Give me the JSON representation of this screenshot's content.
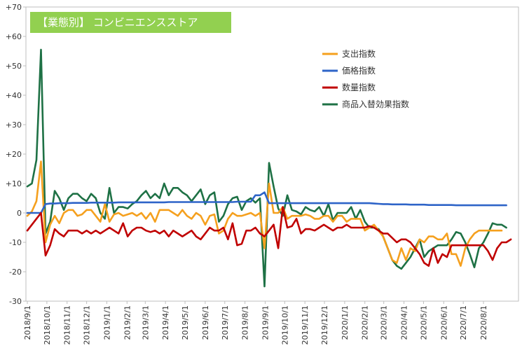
{
  "chart_data": {
    "type": "line",
    "title": "【業態別】 コンビニエンスストア",
    "ylim": [
      -30,
      70
    ],
    "ytick_labels": [
      "-30",
      "-20",
      "-10",
      "0",
      "+10",
      "+20",
      "+30",
      "+40",
      "+50",
      "+60",
      "+70"
    ],
    "xtick_labels": [
      "2018/9/1",
      "2018/10/1",
      "2018/11/1",
      "2018/12/1",
      "2019/1/1",
      "2019/2/1",
      "2019/3/1",
      "2019/4/1",
      "2019/5/1",
      "2019/6/1",
      "2019/7/1",
      "2019/8/1",
      "2019/9/1",
      "2019/10/1",
      "2019/11/1",
      "2019/12/1",
      "2020/1/1",
      "2020/2/1",
      "2020/3/1",
      "2020/4/1",
      "2020/5/1",
      "2020/6/1",
      "2020/7/1",
      "2020/8/1"
    ],
    "x_start": "2018-09-01",
    "x_end": "2020-08-31",
    "x_step": "week",
    "grid": false,
    "legend": "top-right",
    "series": [
      {
        "name": "支出指数",
        "color": "#f5a01e",
        "values": [
          -1,
          0.5,
          4,
          17.5,
          -10,
          -4,
          -1,
          -3.5,
          0,
          1,
          1,
          -1,
          -0.5,
          1,
          1,
          -1,
          -3,
          3,
          -3,
          -0.5,
          0,
          -1,
          -0.5,
          0,
          -1,
          0,
          -2,
          0,
          -3,
          1,
          1,
          1,
          0,
          -1,
          1,
          -1,
          -2,
          0,
          -1,
          -4,
          -1,
          -0.5,
          -7,
          -6,
          -2,
          0,
          -1,
          -1,
          -0.5,
          0,
          -1,
          0,
          -12,
          10,
          0,
          0,
          2,
          -2,
          -1,
          -1,
          -1,
          -0.5,
          -1,
          -2,
          -2,
          -1,
          -1,
          -3,
          -1,
          -1,
          -3,
          -2,
          -2,
          -2,
          -6,
          -5,
          -4,
          -6,
          -8,
          -12,
          -16,
          -17,
          -12,
          -16,
          -12,
          -13,
          -9,
          -10,
          -8,
          -8,
          -9,
          -9,
          -7,
          -14,
          -14,
          -18,
          -12,
          -9,
          -7,
          -6,
          -6,
          -6,
          -6,
          -6,
          -6
        ]
      },
      {
        "name": "価格指数",
        "color": "#2e64c8",
        "values": [
          0,
          0,
          0,
          0,
          3,
          3.2,
          3.2,
          3.3,
          3.3,
          3.3,
          3.4,
          3.4,
          3.4,
          3.4,
          3.5,
          3.5,
          3.5,
          3.5,
          3.5,
          3.5,
          3.6,
          3.6,
          3.6,
          3.6,
          3.6,
          3.6,
          3.6,
          3.6,
          3.6,
          3.6,
          3.6,
          3.7,
          3.7,
          3.7,
          3.7,
          3.7,
          3.7,
          3.7,
          3.7,
          3.7,
          3.7,
          3.7,
          3.7,
          3.7,
          3.7,
          3.7,
          3.8,
          3.8,
          3.8,
          3.8,
          6,
          6,
          7,
          3.3,
          3.3,
          3.3,
          3.3,
          3.3,
          3.3,
          3.3,
          3.3,
          3.3,
          3.3,
          3.3,
          3.3,
          3.3,
          3.3,
          3.3,
          3.3,
          3.3,
          3.3,
          3.3,
          3.3,
          3.3,
          3.3,
          3.3,
          3.2,
          3.1,
          3,
          3,
          2.9,
          2.9,
          2.9,
          2.9,
          2.8,
          2.8,
          2.8,
          2.8,
          2.7,
          2.7,
          2.7,
          2.7,
          2.7,
          2.7,
          2.6,
          2.6,
          2.6,
          2.6,
          2.6,
          2.6,
          2.6,
          2.6,
          2.6,
          2.6,
          2.6,
          2.6
        ]
      },
      {
        "name": "数量指数",
        "color": "#c00000",
        "values": [
          -6,
          -4,
          -2,
          0,
          -14.5,
          -11,
          -5.5,
          -7,
          -8,
          -6,
          -6,
          -6,
          -7,
          -6,
          -7,
          -6,
          -7,
          -6,
          -5,
          -6,
          -7,
          -3.5,
          -8,
          -6,
          -5,
          -5,
          -6,
          -6.5,
          -6,
          -7,
          -6,
          -8,
          -6,
          -7,
          -8,
          -7,
          -6,
          -8,
          -9,
          -7,
          -5,
          -6,
          -6,
          -5,
          -9,
          -3.5,
          -11,
          -10.5,
          -6,
          -6,
          -5,
          -7,
          -8,
          -6,
          -4,
          -12,
          2,
          -5,
          -4.5,
          -2,
          -7,
          -5.5,
          -5.5,
          -6,
          -5,
          -4,
          -5,
          -6,
          -5,
          -5,
          -4,
          -5,
          -5,
          -5,
          -5,
          -4.5,
          -5,
          -6,
          -7,
          -7,
          -8.5,
          -10,
          -9,
          -9,
          -10,
          -12,
          -14,
          -17,
          -18,
          -12,
          -17,
          -14,
          -15,
          -11,
          -11,
          -11,
          -11,
          -11,
          -11,
          -11,
          -11,
          -13,
          -16,
          -12,
          -10,
          -10,
          -9
        ]
      },
      {
        "name": "商品入替効果指数",
        "color": "#1e7145",
        "values": [
          9,
          10,
          18,
          55.5,
          -7,
          -3,
          7.5,
          5,
          1,
          5,
          6.5,
          6.5,
          5,
          4,
          6.5,
          5,
          0,
          -2,
          8.5,
          0,
          2,
          2,
          1.5,
          3,
          4,
          6,
          7.5,
          5,
          6.5,
          5,
          10,
          6,
          8.5,
          8.5,
          7,
          6,
          4,
          6,
          8,
          3,
          6,
          7,
          -3,
          -1,
          3,
          5,
          5.5,
          1,
          4,
          5,
          3.5,
          5,
          -25,
          17,
          9,
          1.5,
          -1,
          6,
          1,
          0.5,
          -0.5,
          2,
          1,
          0.5,
          2,
          -1,
          3,
          -2.5,
          0,
          0,
          0,
          2,
          -2,
          1,
          -3,
          -5,
          -5,
          -5.5,
          -8,
          -12,
          -16,
          -18,
          -19,
          -17,
          -15,
          -12,
          -9,
          -15,
          -13,
          -12,
          -11,
          -11,
          -11,
          -9,
          -6.5,
          -7,
          -10,
          -14,
          -18.5,
          -12,
          -10,
          -7,
          -3.5,
          -4,
          -4,
          -5
        ]
      }
    ]
  }
}
